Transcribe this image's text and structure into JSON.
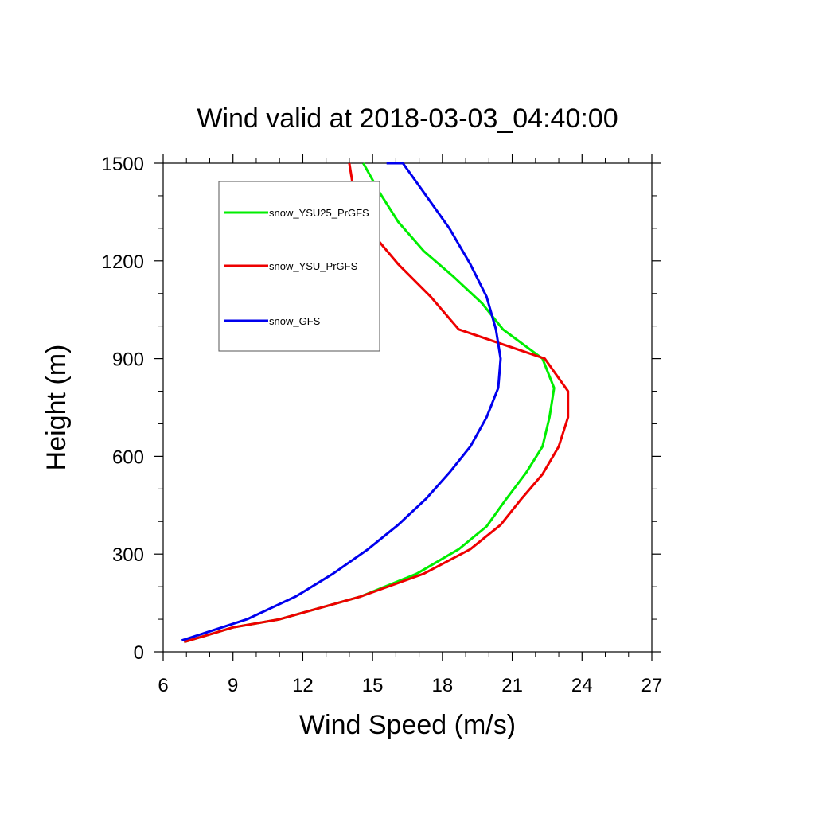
{
  "chart_data": {
    "type": "line",
    "title": "Wind valid at 2018-03-03_04:40:00",
    "xlabel": "Wind Speed (m/s)",
    "ylabel": "Height (m)",
    "xlim": [
      6,
      27
    ],
    "ylim": [
      0,
      1500
    ],
    "x_ticks": [
      "6",
      "9",
      "12",
      "15",
      "18",
      "21",
      "24",
      "27"
    ],
    "y_ticks": [
      "0",
      "300",
      "600",
      "900",
      "1200",
      "1500"
    ],
    "legend_position": "top-left",
    "grid": false,
    "series": [
      {
        "name": "snow_YSU25_PrGFS",
        "color": "#00ee00",
        "x": [
          6.9,
          9.0,
          11.0,
          14.5,
          16.9,
          18.7,
          19.9,
          20.7,
          21.6,
          22.3,
          22.6,
          22.8,
          22.3,
          20.6,
          19.7,
          18.5,
          17.2,
          16.1,
          15.3,
          14.6
        ],
        "y": [
          30,
          75,
          100,
          170,
          240,
          315,
          385,
          465,
          550,
          630,
          720,
          810,
          900,
          990,
          1070,
          1150,
          1230,
          1320,
          1410,
          1500
        ]
      },
      {
        "name": "snow_YSU_PrGFS",
        "color": "#ee0000",
        "x": [
          6.9,
          9.0,
          11.0,
          14.5,
          17.2,
          19.2,
          20.5,
          21.4,
          22.3,
          23.0,
          23.4,
          23.4,
          22.4,
          18.7,
          17.5,
          16.1,
          14.8,
          14.2,
          14.0
        ],
        "y": [
          30,
          75,
          100,
          170,
          240,
          315,
          390,
          470,
          545,
          630,
          720,
          800,
          900,
          990,
          1090,
          1190,
          1300,
          1410,
          1500
        ]
      },
      {
        "name": "snow_GFS",
        "color": "#0000ee",
        "x": [
          6.8,
          9.6,
          11.7,
          13.3,
          14.8,
          16.1,
          17.3,
          18.3,
          19.2,
          19.9,
          20.4,
          20.5,
          20.3,
          19.9,
          19.2,
          18.3,
          17.2,
          16.3,
          15.6
        ],
        "y": [
          35,
          100,
          170,
          240,
          315,
          390,
          470,
          550,
          630,
          720,
          810,
          900,
          990,
          1090,
          1190,
          1300,
          1410,
          1500,
          1500
        ]
      }
    ]
  }
}
